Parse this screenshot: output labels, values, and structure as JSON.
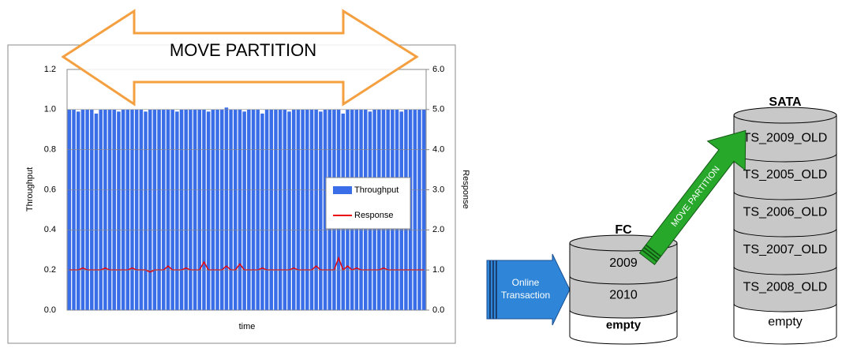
{
  "chart_data": {
    "type": "bar",
    "annotation": "MOVE PARTITION",
    "x_label": "time",
    "y_label": "Throughput",
    "y2_label": "Response",
    "ylim": [
      0,
      1.2
    ],
    "yticks": [
      {
        "value": 0,
        "label": "0.0"
      },
      0.2,
      0.4,
      0.6,
      0.8,
      {
        "value": 1,
        "label": "1.0"
      },
      1.2
    ],
    "y2lim": [
      0,
      6
    ],
    "y2ticks": [
      {
        "value": 0,
        "label": "0.0"
      },
      {
        "value": 1,
        "label": "1.0"
      },
      {
        "value": 2,
        "label": "2.0"
      },
      {
        "value": 3,
        "label": "3.0"
      },
      {
        "value": 4,
        "label": "4.0"
      },
      {
        "value": 5,
        "label": "5.0"
      },
      {
        "value": 6,
        "label": "6.0"
      }
    ],
    "grid": true,
    "legend": "right",
    "series": [
      {
        "name": "Throughput",
        "color": "#3a6ee8",
        "values": [
          1,
          1,
          0.99,
          1,
          1,
          1,
          0.98,
          1,
          1,
          1,
          1,
          0.99,
          1,
          1,
          1,
          1,
          1,
          0.99,
          1,
          1,
          1,
          1,
          1,
          1,
          0.99,
          1,
          1,
          1,
          1,
          1,
          1,
          0.99,
          1,
          1,
          1,
          1.01,
          1,
          1,
          1,
          0.99,
          1,
          1,
          1,
          0.98,
          1,
          1,
          1,
          1,
          1,
          0.99,
          1,
          1,
          1,
          1,
          1,
          1,
          0.99,
          1,
          1,
          1,
          1,
          0.98,
          1,
          1,
          1,
          1,
          1,
          0.99,
          1,
          1,
          1,
          1,
          1,
          1,
          0.99,
          1,
          1,
          1,
          1,
          1
        ]
      },
      {
        "name": "Response",
        "color": "#e8000b",
        "axis": "y2",
        "type": "line",
        "values": [
          1,
          1,
          1,
          1.05,
          1,
          1,
          1,
          1,
          1.05,
          1,
          1,
          1,
          1,
          1,
          1.05,
          1,
          1,
          1,
          0.95,
          1,
          1,
          1,
          1.1,
          1,
          1,
          1,
          1.05,
          1,
          1,
          1,
          1.2,
          1,
          1,
          1,
          1,
          1.1,
          1,
          1,
          1.15,
          1,
          1,
          1,
          1,
          1.05,
          1,
          1,
          1,
          1,
          1,
          1,
          1.05,
          1,
          1,
          1,
          1,
          1.1,
          1,
          1,
          1,
          1,
          1.3,
          1,
          1.1,
          1,
          1.05,
          1,
          1,
          1,
          1,
          1,
          1.05,
          1,
          1,
          1,
          1,
          1,
          1,
          1,
          1,
          1
        ]
      }
    ]
  },
  "diagram": {
    "online_arrow": [
      "Online",
      "Transaction"
    ],
    "fc": {
      "label": "FC",
      "segments": [
        "2009",
        "2010",
        "empty"
      ]
    },
    "move_arrow": "MOVE PARTITION",
    "sata": {
      "label": "SATA",
      "segments": [
        "TS_2009_OLD",
        "TS_2005_OLD",
        "TS_2006_OLD",
        "TS_2007_OLD",
        "TS_2008_OLD",
        "empty"
      ]
    }
  }
}
